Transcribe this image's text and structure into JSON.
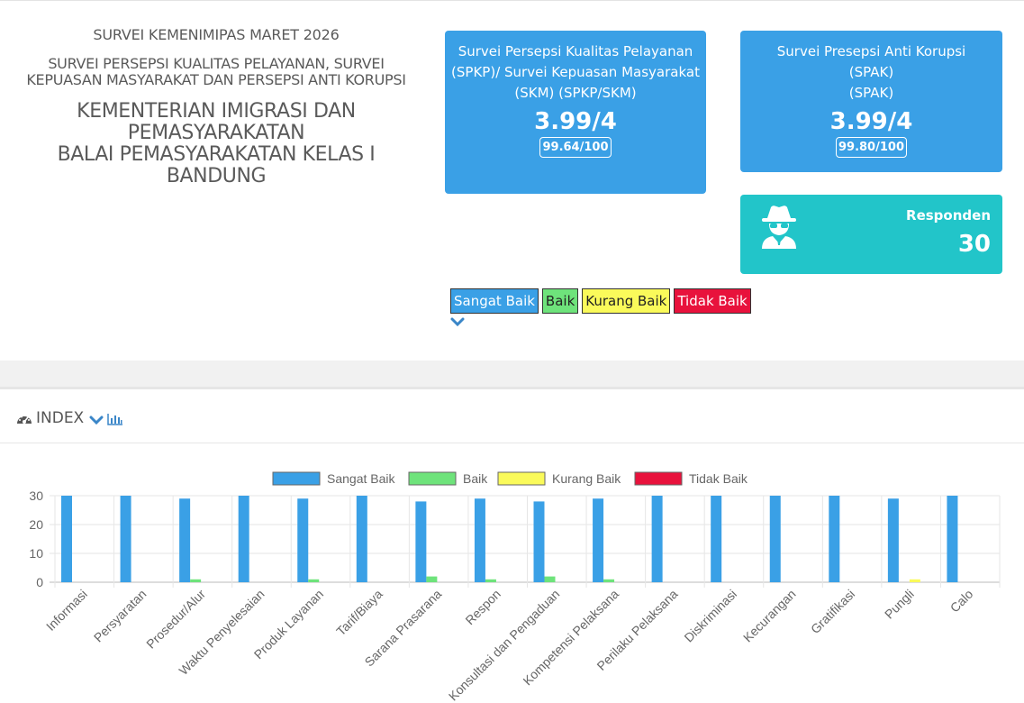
{
  "header": {
    "survey_period": "SURVEI KEMENIMIPAS MARET 2026",
    "survey_subtitle": "SURVEI PERSEPSI KUALITAS PELAYANAN, SURVEI KEPUASAN MASYARAKAT DAN PERSEPSI ANTI KORUPSI",
    "org_line1": "KEMENTERIAN IMIGRASI DAN PEMASYARAKATAN",
    "org_line2": "BALAI PEMASYARAKATAN KELAS I BANDUNG"
  },
  "cards": {
    "spkp": {
      "title": "Survei Persepsi Kualitas Pelayanan (SPKP)/ Survei Kepuasan Masyarakat (SKM) (SPKP/SKM)",
      "score": "3.99/4",
      "badge": "99.64/100"
    },
    "spak": {
      "title_line1": "Survei Presepsi Anti Korupsi",
      "title_line2": "(SPAK)",
      "title_line3": "(SPAK)",
      "score": "3.99/4",
      "badge": "99.80/100"
    },
    "responden": {
      "label": "Responden",
      "value": "30",
      "icon": "user-secret-icon"
    }
  },
  "legend_buttons": [
    {
      "label": "Sangat Baik",
      "color": "#3aa0e6"
    },
    {
      "label": "Baik",
      "color": "#6ee37b"
    },
    {
      "label": "Kurang Baik",
      "color": "#fafa5a"
    },
    {
      "label": "Tidak Baik",
      "color": "#e8123c"
    }
  ],
  "panel": {
    "title": "INDEX",
    "icons": [
      "gauge-icon",
      "chevron-down-icon",
      "bar-chart-icon"
    ]
  },
  "chart_data": {
    "type": "bar",
    "categories": [
      "Informasi",
      "Persyaratan",
      "Prosedur/Alur",
      "Waktu Penyelesaian",
      "Produk Layanan",
      "Tarif/Biaya",
      "Sarana Prasarana",
      "Respon",
      "Konsultasi dan Pengaduan",
      "Kompetensi Pelaksana",
      "Perilaku Pelaksana",
      "Diskriminasi",
      "Kecurangan",
      "Gratifikasi",
      "Pungli",
      "Calo"
    ],
    "series": [
      {
        "name": "Sangat Baik",
        "color": "#3aa0e6",
        "values": [
          30,
          30,
          29,
          30,
          29,
          30,
          28,
          29,
          28,
          29,
          30,
          30,
          30,
          30,
          29,
          30
        ]
      },
      {
        "name": "Baik",
        "color": "#6ee37b",
        "values": [
          0,
          0,
          1,
          0,
          1,
          0,
          2,
          1,
          2,
          1,
          0,
          0,
          0,
          0,
          0,
          0
        ]
      },
      {
        "name": "Kurang Baik",
        "color": "#fafa5a",
        "values": [
          0,
          0,
          0,
          0,
          0,
          0,
          0,
          0,
          0,
          0,
          0,
          0,
          0,
          0,
          1,
          0
        ]
      },
      {
        "name": "Tidak Baik",
        "color": "#e8123c",
        "values": [
          0,
          0,
          0,
          0,
          0,
          0,
          0,
          0,
          0,
          0,
          0,
          0,
          0,
          0,
          0,
          0
        ]
      }
    ],
    "ylim": [
      0,
      30
    ],
    "yticks": [
      "0",
      "10",
      "20",
      "30"
    ],
    "grid": true,
    "legend_position": "top"
  }
}
